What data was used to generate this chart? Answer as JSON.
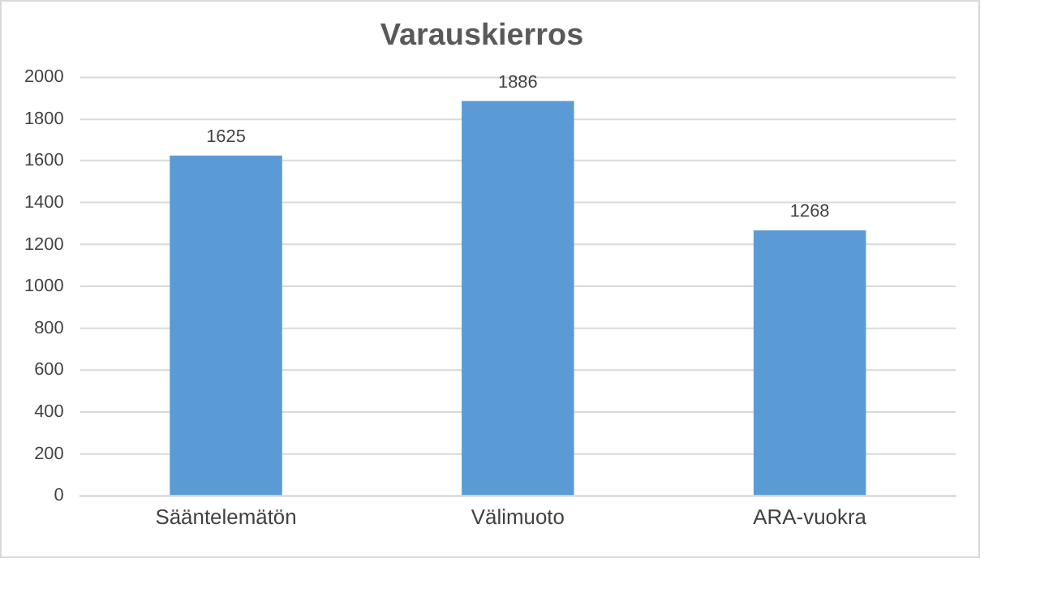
{
  "chart_data": {
    "type": "bar",
    "title": "Varauskierros",
    "categories": [
      "Sääntelemätön",
      "Välimuoto",
      "ARA-vuokra"
    ],
    "values": [
      1625,
      1886,
      1268
    ],
    "color": "#5b9bd5",
    "ylim": [
      0,
      2000
    ],
    "yticks": [
      0,
      200,
      400,
      600,
      800,
      1000,
      1200,
      1400,
      1600,
      1800,
      2000
    ],
    "grid": "y",
    "data_labels": true,
    "legend": false
  }
}
